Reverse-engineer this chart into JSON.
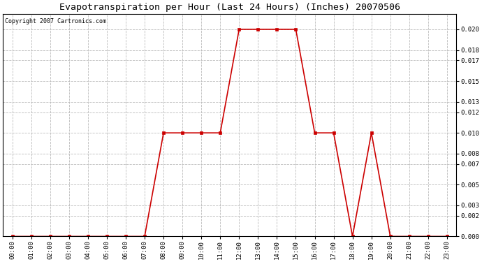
{
  "title": "Evapotranspiration per Hour (Last 24 Hours) (Inches) 20070506",
  "copyright": "Copyright 2007 Cartronics.com",
  "hours": [
    "00:00",
    "01:00",
    "02:00",
    "03:00",
    "04:00",
    "05:00",
    "06:00",
    "07:00",
    "08:00",
    "09:00",
    "10:00",
    "11:00",
    "12:00",
    "13:00",
    "14:00",
    "15:00",
    "16:00",
    "17:00",
    "18:00",
    "19:00",
    "20:00",
    "21:00",
    "22:00",
    "23:00"
  ],
  "values": [
    0.0,
    0.0,
    0.0,
    0.0,
    0.0,
    0.0,
    0.0,
    0.0,
    0.01,
    0.01,
    0.01,
    0.01,
    0.02,
    0.02,
    0.02,
    0.02,
    0.01,
    0.01,
    0.0,
    0.01,
    0.0,
    0.0,
    0.0,
    0.0
  ],
  "line_color": "#cc0000",
  "marker_color": "#cc0000",
  "bg_color": "#ffffff",
  "plot_bg_color": "#ffffff",
  "grid_color": "#bbbbbb",
  "title_fontsize": 9.5,
  "copyright_fontsize": 6,
  "tick_fontsize": 6.5,
  "ytick_values": [
    0.0,
    0.002,
    0.003,
    0.005,
    0.007,
    0.008,
    0.01,
    0.012,
    0.013,
    0.015,
    0.017,
    0.018,
    0.02
  ],
  "ylim": [
    0.0,
    0.0215
  ]
}
